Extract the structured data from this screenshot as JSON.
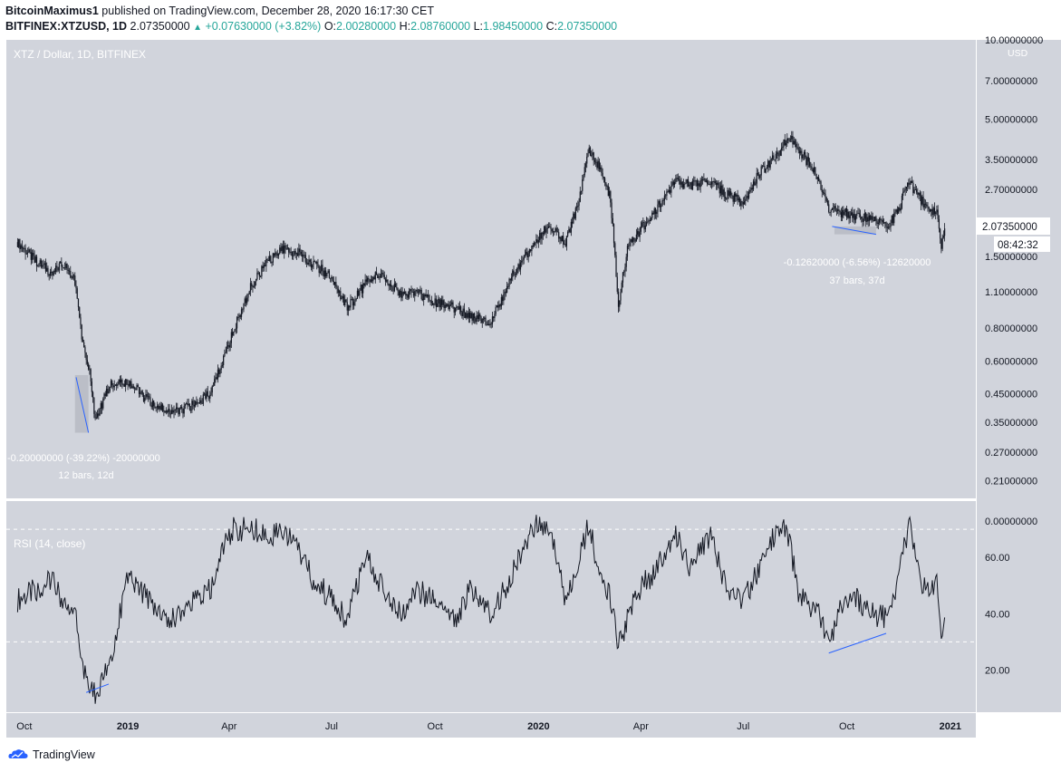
{
  "header": {
    "author": "BitcoinMaximus1",
    "published_text": "published on TradingView.com, December 28, 2020 16:17:30 CET",
    "symbol": "BITFINEX:XTZUSD, 1D",
    "last": "2.07350000",
    "change": "+0.07630000 (+3.82%)",
    "o_label": "O:",
    "o": "2.00280000",
    "h_label": "H:",
    "h": "2.08760000",
    "l_label": "L:",
    "l": "1.98450000",
    "c_label": "C:",
    "c": "2.07350000"
  },
  "footer": {
    "brand": "TradingView"
  },
  "colors": {
    "pane_bg": "#d1d4dc",
    "candle": "#131722",
    "trendline": "#2962ff",
    "rsi_line": "#131722",
    "text_light": "#ffffff"
  },
  "chart_data": [
    {
      "type": "candlestick",
      "title": "XTZ / Dollar, 1D, BITFINEX",
      "currency_label": "USD",
      "y_scale": "log",
      "ylim": [
        0.18,
        10.0
      ],
      "x_ticks": [
        "Oct",
        "2019",
        "Apr",
        "Jul",
        "Oct",
        "2020",
        "Apr",
        "Jul",
        "Oct",
        "2021"
      ],
      "y_ticks": [
        "10.00000000",
        "7.00000000",
        "5.00000000",
        "3.50000000",
        "2.70000000",
        "1.50000000",
        "1.10000000",
        "0.80000000",
        "0.60000000",
        "0.45000000",
        "0.35000000",
        "0.27000000",
        "0.21000000"
      ],
      "last_price_label": "2.07350000",
      "countdown_label": "08:42:32",
      "series": [
        {
          "name": "close",
          "x": [
            "2018-09-25",
            "2018-10-10",
            "2018-10-25",
            "2018-11-05",
            "2018-11-15",
            "2018-11-22",
            "2018-11-28",
            "2018-12-03",
            "2018-12-15",
            "2019-01-01",
            "2019-01-20",
            "2019-02-10",
            "2019-02-25",
            "2019-03-15",
            "2019-03-25",
            "2019-04-05",
            "2019-04-20",
            "2019-05-05",
            "2019-05-20",
            "2019-06-01",
            "2019-06-15",
            "2019-07-01",
            "2019-07-15",
            "2019-08-01",
            "2019-08-15",
            "2019-09-01",
            "2019-09-15",
            "2019-10-01",
            "2019-10-20",
            "2019-11-01",
            "2019-11-20",
            "2019-12-10",
            "2019-12-25",
            "2020-01-10",
            "2020-01-25",
            "2020-02-05",
            "2020-02-15",
            "2020-02-25",
            "2020-03-05",
            "2020-03-12",
            "2020-03-20",
            "2020-04-01",
            "2020-04-15",
            "2020-05-01",
            "2020-05-15",
            "2020-06-01",
            "2020-06-15",
            "2020-07-01",
            "2020-07-15",
            "2020-08-01",
            "2020-08-10",
            "2020-08-20",
            "2020-09-05",
            "2020-09-15",
            "2020-09-25",
            "2020-10-10",
            "2020-10-25",
            "2020-11-05",
            "2020-11-15",
            "2020-11-25",
            "2020-12-05",
            "2020-12-15",
            "2020-12-20",
            "2020-12-24",
            "2020-12-28"
          ],
          "values": [
            1.7,
            1.45,
            1.3,
            1.4,
            1.2,
            0.7,
            0.55,
            0.35,
            0.48,
            0.5,
            0.42,
            0.38,
            0.4,
            0.45,
            0.58,
            0.78,
            1.15,
            1.42,
            1.6,
            1.55,
            1.4,
            1.25,
            0.95,
            1.2,
            1.3,
            1.05,
            1.1,
            1.0,
            0.95,
            0.88,
            0.85,
            1.3,
            1.6,
            2.0,
            1.7,
            2.4,
            3.8,
            3.2,
            2.5,
            1.0,
            1.6,
            1.9,
            2.3,
            2.9,
            2.8,
            2.9,
            2.6,
            2.4,
            3.1,
            3.7,
            4.3,
            3.8,
            3.0,
            2.3,
            2.2,
            2.15,
            2.05,
            1.95,
            2.2,
            2.9,
            2.5,
            2.2,
            2.2,
            1.6,
            2.07
          ]
        }
      ],
      "annotations": [
        {
          "text": "-0.20000000 (-39.22%) -20000000",
          "subtext": "12 bars, 12d"
        },
        {
          "text": "-0.12620000 (-6.56%) -12620000",
          "subtext": "37 bars, 37d"
        }
      ]
    },
    {
      "type": "line",
      "title": "RSI (14, close)",
      "ylim": [
        5,
        80
      ],
      "y_ticks": [
        "0.00000000",
        "60.00",
        "40.00",
        "20.00"
      ],
      "reference_lines": [
        30,
        70
      ],
      "series": [
        {
          "name": "RSI",
          "x": [
            "2018-09-25",
            "2018-10-10",
            "2018-10-25",
            "2018-11-05",
            "2018-11-15",
            "2018-11-22",
            "2018-11-28",
            "2018-12-03",
            "2018-12-15",
            "2019-01-01",
            "2019-01-20",
            "2019-02-10",
            "2019-02-25",
            "2019-03-15",
            "2019-03-25",
            "2019-04-05",
            "2019-04-20",
            "2019-05-05",
            "2019-05-20",
            "2019-06-01",
            "2019-06-15",
            "2019-07-01",
            "2019-07-15",
            "2019-08-01",
            "2019-08-15",
            "2019-09-01",
            "2019-09-15",
            "2019-10-01",
            "2019-10-20",
            "2019-11-01",
            "2019-11-20",
            "2019-12-10",
            "2019-12-25",
            "2020-01-10",
            "2020-01-25",
            "2020-02-05",
            "2020-02-15",
            "2020-02-25",
            "2020-03-05",
            "2020-03-12",
            "2020-03-20",
            "2020-04-01",
            "2020-04-15",
            "2020-05-01",
            "2020-05-15",
            "2020-06-01",
            "2020-06-15",
            "2020-07-01",
            "2020-07-15",
            "2020-08-01",
            "2020-08-10",
            "2020-08-20",
            "2020-09-05",
            "2020-09-15",
            "2020-09-25",
            "2020-10-10",
            "2020-10-25",
            "2020-11-05",
            "2020-11-15",
            "2020-11-25",
            "2020-12-05",
            "2020-12-15",
            "2020-12-20",
            "2020-12-24",
            "2020-12-28"
          ],
          "values": [
            45,
            48,
            52,
            44,
            40,
            20,
            12,
            12,
            22,
            52,
            45,
            38,
            44,
            48,
            62,
            70,
            70,
            68,
            70,
            62,
            52,
            45,
            38,
            60,
            50,
            40,
            48,
            45,
            38,
            48,
            40,
            55,
            70,
            72,
            45,
            58,
            72,
            52,
            45,
            28,
            38,
            50,
            55,
            70,
            56,
            68,
            50,
            45,
            55,
            72,
            68,
            45,
            42,
            30,
            42,
            45,
            40,
            38,
            50,
            72,
            52,
            48,
            55,
            30,
            46
          ]
        }
      ]
    }
  ]
}
